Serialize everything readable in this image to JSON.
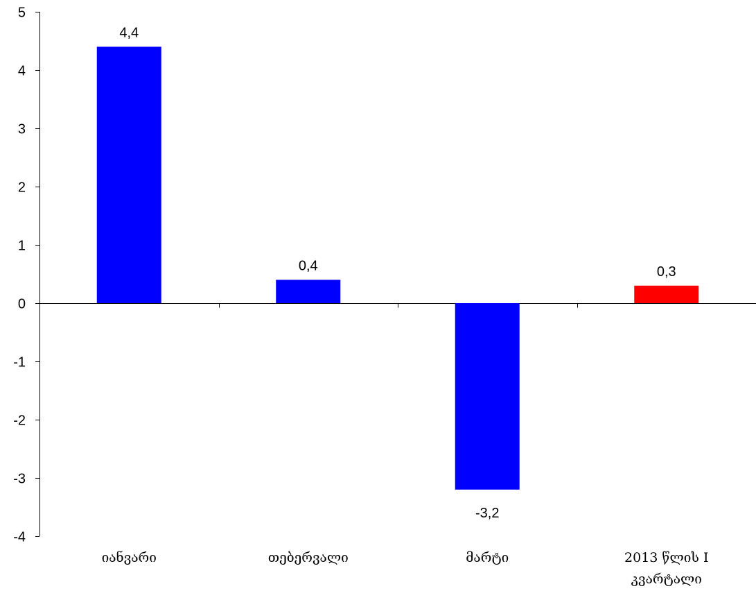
{
  "chart_data": {
    "type": "bar",
    "categories": [
      "იანვარი",
      "თებერვალი",
      "მარტი",
      "2013 წლის I კვარტალი"
    ],
    "category_lines": [
      [
        "იანვარი"
      ],
      [
        "თებერვალი"
      ],
      [
        "მარტი"
      ],
      [
        "2013 წლის I",
        "კვარტალი"
      ]
    ],
    "values": [
      4.4,
      0.4,
      -3.2,
      0.3
    ],
    "value_labels": [
      "4,4",
      "0,4",
      "-3,2",
      "0,3"
    ],
    "bar_colors": [
      "#0000ff",
      "#0000ff",
      "#0000ff",
      "#ff0000"
    ],
    "ylim": [
      -4,
      5
    ],
    "yticks": [
      5,
      4,
      3,
      2,
      1,
      0,
      -1,
      -2,
      -3,
      -4
    ],
    "ytick_labels": [
      "5",
      "4",
      "3",
      "2",
      "1",
      "0",
      "-1",
      "-2",
      "-3",
      "-4"
    ],
    "title": "",
    "xlabel": "",
    "ylabel": "",
    "grid": false,
    "legend": false
  }
}
